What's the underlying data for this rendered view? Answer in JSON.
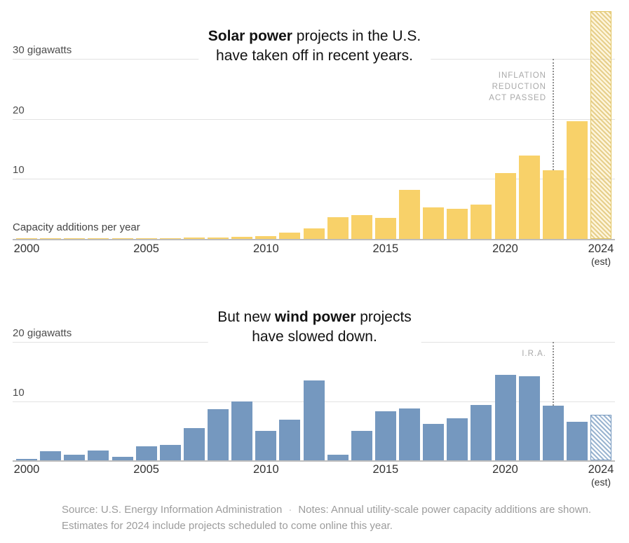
{
  "charts": [
    {
      "key": "solar",
      "title": {
        "pre": "",
        "bold": "Solar power",
        "post": " projects in the U.S.",
        "line2": "have taken off in recent years."
      },
      "plot_label": "Capacity additions per year",
      "y_ticks": [
        {
          "value": 30,
          "label": "30 gigawatts"
        },
        {
          "value": 20,
          "label": "20"
        },
        {
          "value": 10,
          "label": "10"
        }
      ],
      "x_ticks": [
        {
          "year": 2000,
          "label": "2000"
        },
        {
          "year": 2005,
          "label": "2005"
        },
        {
          "year": 2010,
          "label": "2010"
        },
        {
          "year": 2015,
          "label": "2015"
        },
        {
          "year": 2020,
          "label": "2020"
        },
        {
          "year": 2024,
          "label": "2024",
          "sub": "(est)"
        }
      ],
      "annotation_lines": [
        "INFLATION",
        "REDUCTION",
        "ACT PASSED"
      ],
      "annotation_year": 2022,
      "colors": {
        "bar": "#F8D169",
        "hatch_bg": "rgba(246,215,115,0.25)",
        "hatch_stripe": "rgba(212,174,70,0.55)",
        "hatch_border": "#E3C55F"
      }
    },
    {
      "key": "wind",
      "title": {
        "pre": "But new ",
        "bold": "wind power",
        "post": " projects",
        "line2": "have slowed down."
      },
      "plot_label": "",
      "y_ticks": [
        {
          "value": 20,
          "label": "20 gigawatts"
        },
        {
          "value": 10,
          "label": "10"
        }
      ],
      "x_ticks": [
        {
          "year": 2000,
          "label": "2000"
        },
        {
          "year": 2005,
          "label": "2005"
        },
        {
          "year": 2010,
          "label": "2010"
        },
        {
          "year": 2015,
          "label": "2015"
        },
        {
          "year": 2020,
          "label": "2020"
        },
        {
          "year": 2024,
          "label": "2024",
          "sub": "(est)"
        }
      ],
      "annotation_lines": [
        "I.R.A."
      ],
      "annotation_year": 2022,
      "colors": {
        "bar": "#7598BF",
        "hatch_bg": "#FFFFFF",
        "hatch_stripe": "#9AB4D0",
        "hatch_border": "#7598BF"
      }
    }
  ],
  "footer": {
    "source": "Source: U.S. Energy Information Administration",
    "separator": "·",
    "notes": "Notes: Annual utility-scale power capacity additions are shown. Estimates for 2024 include projects scheduled to come online this year."
  },
  "chart_data": [
    {
      "type": "bar",
      "title": "Solar power projects in the U.S. have taken off in recent years.",
      "unit": "gigawatts",
      "ylabel": "Capacity additions per year",
      "xlabel": "",
      "ylim": [
        0,
        38
      ],
      "y_gridlines": [
        10,
        20,
        30
      ],
      "legend": "none",
      "x": [
        2000,
        2001,
        2002,
        2003,
        2004,
        2005,
        2006,
        2007,
        2008,
        2009,
        2010,
        2011,
        2012,
        2013,
        2014,
        2015,
        2016,
        2017,
        2018,
        2019,
        2020,
        2021,
        2022,
        2023,
        2024
      ],
      "values": [
        0.1,
        0.15,
        0.15,
        0.1,
        0.15,
        0.15,
        0.15,
        0.2,
        0.25,
        0.3,
        0.45,
        1.1,
        1.7,
        3.6,
        4.0,
        3.5,
        8.2,
        5.3,
        5.0,
        5.7,
        11.0,
        13.9,
        11.4,
        19.6,
        38.0
      ],
      "last_bar_estimated": true,
      "estimated_bar_style": "hatched",
      "bar_color": "#F8D169",
      "annotation": {
        "text": "Inflation Reduction Act passed",
        "x": 2022
      }
    },
    {
      "type": "bar",
      "title": "But new wind power projects have slowed down.",
      "unit": "gigawatts",
      "ylabel": "",
      "xlabel": "",
      "ylim": [
        0,
        20
      ],
      "y_gridlines": [
        10,
        20
      ],
      "legend": "none",
      "x": [
        2000,
        2001,
        2002,
        2003,
        2004,
        2005,
        2006,
        2007,
        2008,
        2009,
        2010,
        2011,
        2012,
        2013,
        2014,
        2015,
        2016,
        2017,
        2018,
        2019,
        2020,
        2021,
        2022,
        2023,
        2024
      ],
      "values": [
        0.3,
        1.6,
        0.9,
        1.7,
        0.6,
        2.4,
        2.6,
        5.5,
        8.7,
        10.0,
        5.0,
        6.9,
        13.5,
        1.0,
        5.0,
        8.3,
        8.8,
        6.2,
        7.1,
        9.3,
        14.5,
        14.2,
        9.2,
        6.5,
        7.7
      ],
      "last_bar_estimated": true,
      "estimated_bar_style": "hatched",
      "bar_color": "#7598BF",
      "annotation": {
        "text": "I.R.A.",
        "x": 2022
      }
    }
  ]
}
